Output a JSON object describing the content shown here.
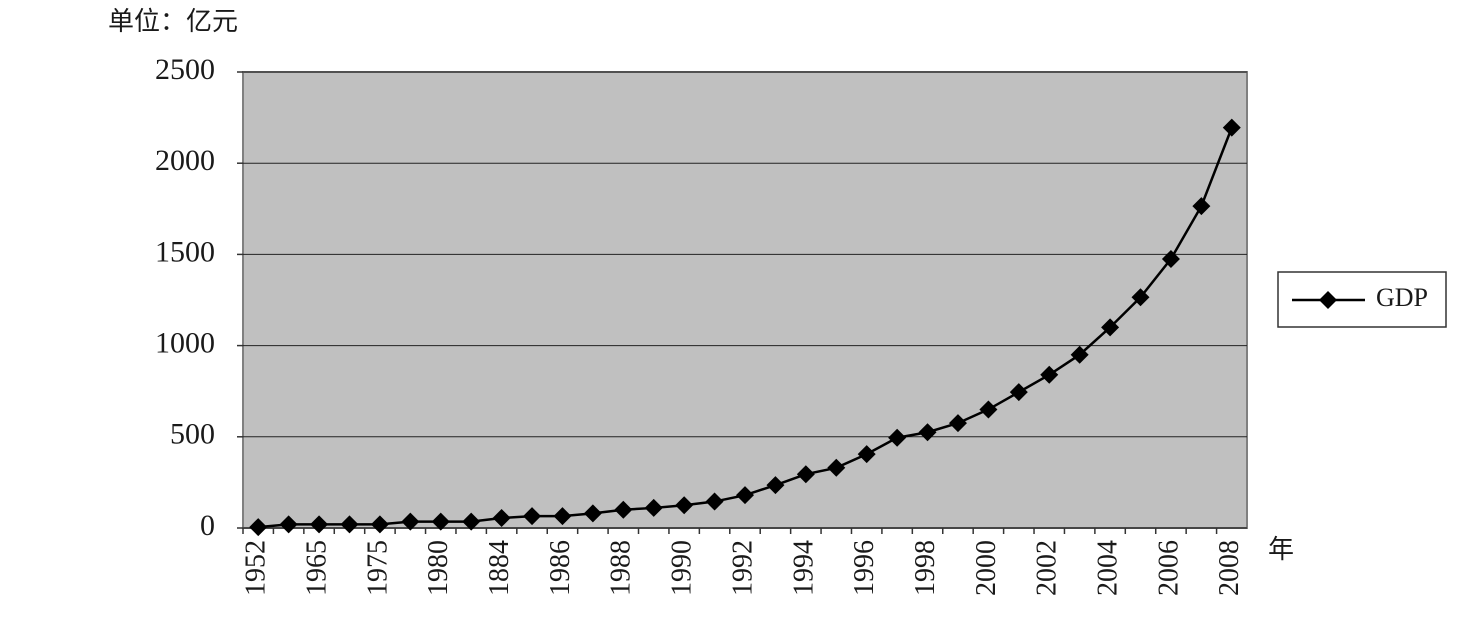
{
  "chart_data": {
    "type": "line",
    "y_unit_label": "单位：亿元",
    "x_label": "年",
    "categories": [
      "1952",
      null,
      "1965",
      null,
      "1975",
      null,
      "1980",
      null,
      "1884",
      null,
      "1986",
      null,
      "1988",
      null,
      "1990",
      null,
      "1992",
      null,
      "1994",
      null,
      "1996",
      null,
      "1998",
      null,
      "2000",
      null,
      "2002",
      null,
      "2004",
      null,
      "2006",
      null,
      "2008"
    ],
    "series": [
      {
        "name": "GDP",
        "color": "#000000",
        "values": [
          5,
          20,
          20,
          20,
          20,
          35,
          35,
          35,
          55,
          65,
          65,
          80,
          100,
          110,
          125,
          145,
          180,
          235,
          295,
          330,
          405,
          495,
          525,
          575,
          650,
          745,
          840,
          950,
          1100,
          1265,
          1475,
          1765,
          2195
        ]
      }
    ],
    "ylim": [
      0,
      2500
    ],
    "yticks": [
      0,
      500,
      1000,
      1500,
      2000,
      2500
    ],
    "grid": true,
    "plot_background": "#c0c0c0",
    "legend": "right"
  }
}
